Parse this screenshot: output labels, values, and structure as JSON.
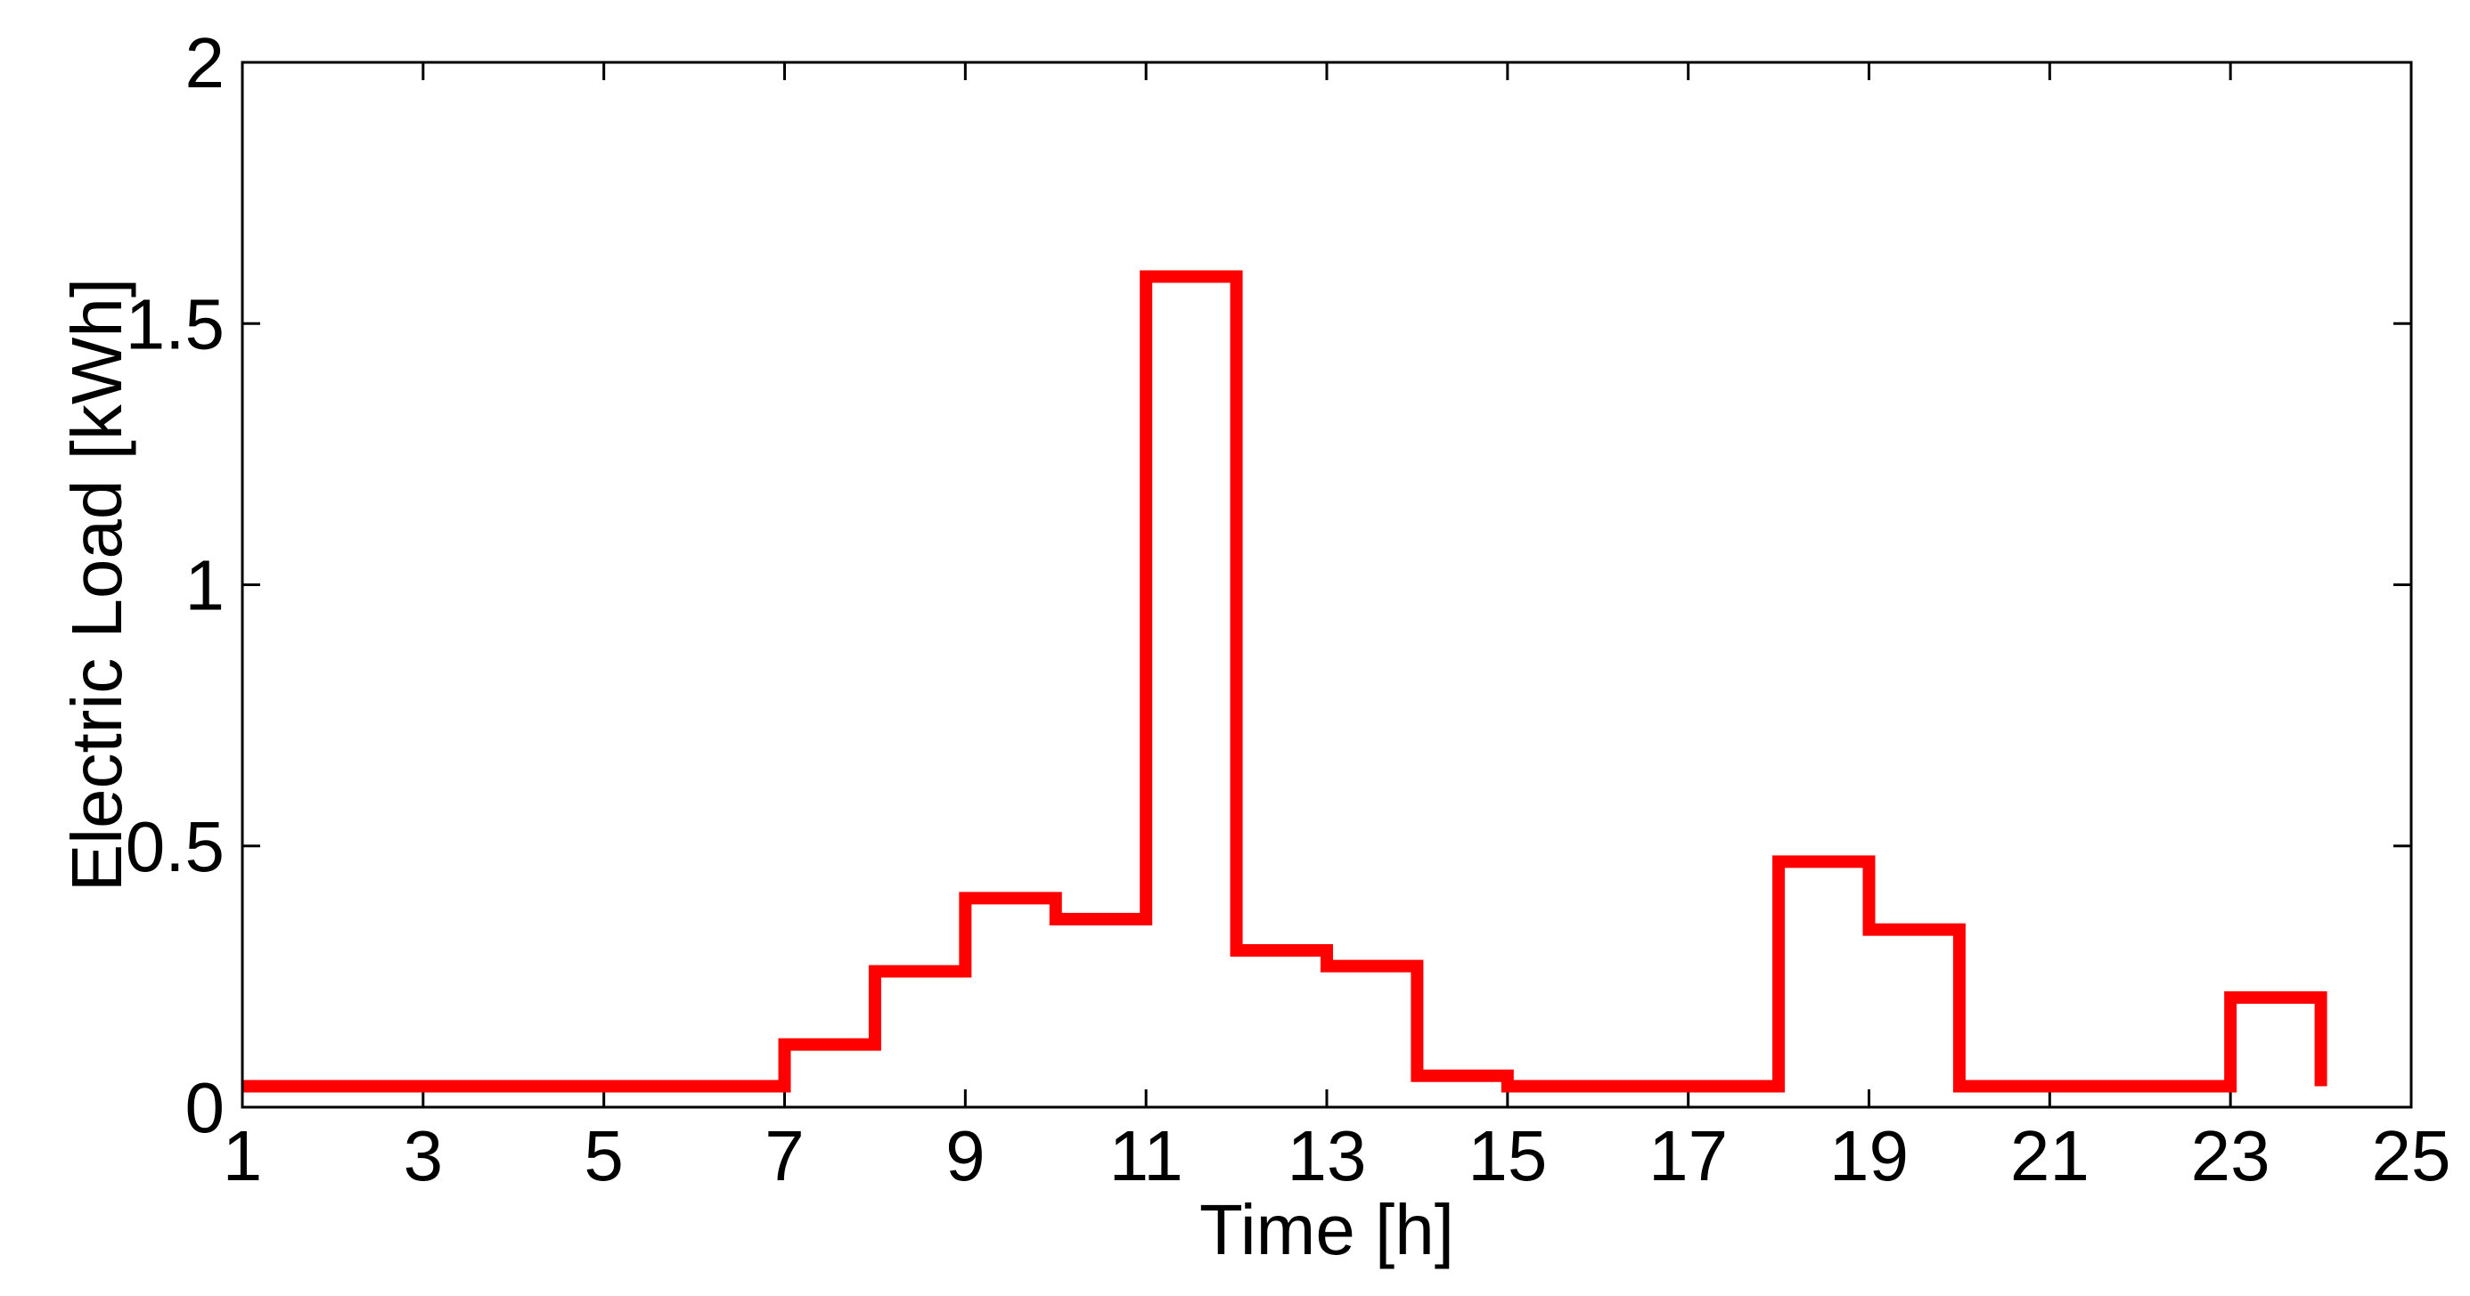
{
  "colors": {
    "series": "#ff0000",
    "axes": "#000000",
    "background": "#ffffff"
  },
  "chart_data": {
    "type": "line",
    "step": "post",
    "title": "",
    "xlabel": "Time [h]",
    "ylabel": "Electric Load [kWh]",
    "xlim": [
      1,
      25
    ],
    "ylim": [
      0,
      2
    ],
    "xticks": [
      1,
      3,
      5,
      7,
      9,
      11,
      13,
      15,
      17,
      19,
      21,
      23,
      25
    ],
    "yticks": [
      0,
      0.5,
      1,
      1.5,
      2
    ],
    "ytick_labels": [
      "0",
      "0.5",
      "1",
      "1.5",
      "2"
    ],
    "grid": false,
    "legend": "none",
    "series": [
      {
        "x": [
          1,
          2,
          3,
          4,
          5,
          6,
          7,
          8,
          9,
          10,
          11,
          12,
          13,
          14,
          15,
          16,
          17,
          18,
          19,
          20,
          21,
          22,
          23,
          24
        ],
        "values": [
          0.04,
          0.04,
          0.04,
          0.04,
          0.04,
          0.04,
          0.12,
          0.26,
          0.4,
          0.36,
          1.59,
          0.3,
          0.27,
          0.06,
          0.04,
          0.04,
          0.04,
          0.47,
          0.34,
          0.04,
          0.04,
          0.04,
          0.21,
          0.04
        ]
      }
    ]
  }
}
